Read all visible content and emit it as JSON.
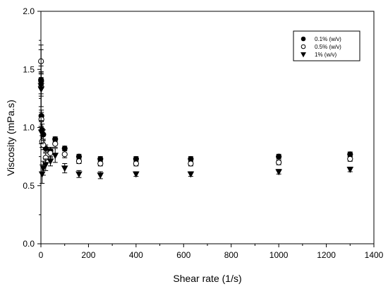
{
  "chart_data": {
    "type": "scatter",
    "xlabel": "Shear rate (1/s)",
    "ylabel": "Viscosity (mPa.s)",
    "xlim": [
      0,
      1400
    ],
    "ylim": [
      0.0,
      2.0
    ],
    "x_ticks": [
      "0",
      "200",
      "400",
      "600",
      "800",
      "1000",
      "1200",
      "1400"
    ],
    "y_ticks": [
      "0.0",
      "0.5",
      "1.0",
      "1.5",
      "2.0"
    ],
    "legend_position": "top-right",
    "error_bars": true,
    "series": [
      {
        "name": "0.1% (w/v)",
        "marker": "filled-circle",
        "x": [
          0.5,
          1,
          2,
          5,
          10,
          20,
          40,
          60,
          100,
          160,
          250,
          400,
          630,
          1000,
          1300
        ],
        "y": [
          1.41,
          1.4,
          1.1,
          0.98,
          0.94,
          0.82,
          0.8,
          0.9,
          0.82,
          0.75,
          0.73,
          0.73,
          0.73,
          0.75,
          0.77
        ],
        "err": [
          0.12,
          0.06,
          0.05,
          0.05,
          0.04,
          0.03,
          0.03,
          0.02,
          0.02,
          0.02,
          0.02,
          0.02,
          0.02,
          0.02,
          0.02
        ]
      },
      {
        "name": "0.5% (w/v)",
        "marker": "open-circle",
        "x": [
          0.5,
          1,
          2,
          5,
          10,
          20,
          40,
          60,
          100,
          160,
          250,
          400,
          630,
          1000,
          1300
        ],
        "y": [
          1.57,
          1.35,
          1.07,
          0.88,
          0.85,
          0.74,
          0.78,
          0.86,
          0.77,
          0.71,
          0.69,
          0.69,
          0.69,
          0.7,
          0.73
        ],
        "err": [
          0.1,
          0.08,
          0.06,
          0.05,
          0.04,
          0.04,
          0.04,
          0.03,
          0.03,
          0.02,
          0.02,
          0.02,
          0.02,
          0.02,
          0.02
        ]
      },
      {
        "name": "1% (w/v)",
        "marker": "filled-triangle-down",
        "x": [
          0.5,
          1,
          2,
          5,
          10,
          20,
          40,
          60,
          100,
          160,
          250,
          400,
          630,
          1000,
          1300
        ],
        "y": [
          1.36,
          1.33,
          0.96,
          0.6,
          0.65,
          0.68,
          0.71,
          0.76,
          0.65,
          0.6,
          0.59,
          0.6,
          0.6,
          0.62,
          0.64
        ],
        "err": [
          0.35,
          0.15,
          0.1,
          0.08,
          0.06,
          0.05,
          0.04,
          0.06,
          0.04,
          0.03,
          0.03,
          0.02,
          0.02,
          0.02,
          0.02
        ]
      }
    ]
  }
}
